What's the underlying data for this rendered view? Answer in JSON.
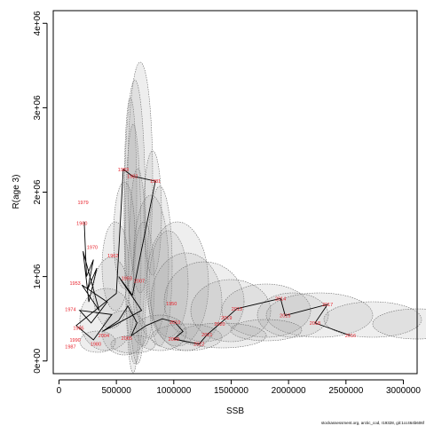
{
  "chart_data": {
    "type": "scatter",
    "title": "",
    "xlabel": "SSB",
    "ylabel": "R(age 3)",
    "xlim": [
      -50000,
      3120000
    ],
    "ylim": [
      -150000,
      4150000
    ],
    "x_ticks": [
      0,
      500000,
      1000000,
      1500000,
      2000000,
      2500000,
      3000000
    ],
    "x_tick_labels": [
      "0",
      "500000",
      "1000000",
      "1500000",
      "2000000",
      "2500000",
      "3000000"
    ],
    "y_ticks": [
      0,
      1000000,
      2000000,
      3000000,
      4000000
    ],
    "y_tick_labels": [
      "0e+00",
      "1e+06",
      "2e+06",
      "3e+06",
      "4e+06"
    ],
    "grid": false,
    "caption": "stockassessment.org, arctic_cod, r19328, git:1cc464b606f",
    "colors": {
      "points": "#e8202a",
      "line": "#000000",
      "ellipse_fill": "#9a9a9a",
      "ellipse_stroke": "#6a6a6a"
    },
    "labeled_points": [
      {
        "label": "1983",
        "x": 560000,
        "y": 2270000
      },
      {
        "label": "1982",
        "x": 640000,
        "y": 2190000
      },
      {
        "label": "1981",
        "x": 840000,
        "y": 2130000
      },
      {
        "label": "1950",
        "x": 980000,
        "y": 680000
      },
      {
        "label": "1979",
        "x": 210000,
        "y": 1880000
      },
      {
        "label": "1960",
        "x": 200000,
        "y": 1630000
      },
      {
        "label": "1970",
        "x": 290000,
        "y": 1350000
      },
      {
        "label": "1962",
        "x": 470000,
        "y": 1250000
      },
      {
        "label": "1993",
        "x": 590000,
        "y": 980000
      },
      {
        "label": "2007",
        "x": 700000,
        "y": 950000
      },
      {
        "label": "1953",
        "x": 140000,
        "y": 920000
      },
      {
        "label": "1974",
        "x": 100000,
        "y": 610000
      },
      {
        "label": "1985",
        "x": 170000,
        "y": 390000
      },
      {
        "label": "2004",
        "x": 390000,
        "y": 300000
      },
      {
        "label": "2005",
        "x": 590000,
        "y": 270000
      },
      {
        "label": "1990",
        "x": 140000,
        "y": 250000
      },
      {
        "label": "1980",
        "x": 320000,
        "y": 200000
      },
      {
        "label": "1987",
        "x": 100000,
        "y": 170000
      },
      {
        "label": "2010",
        "x": 1010000,
        "y": 460000
      },
      {
        "label": "2009",
        "x": 1000000,
        "y": 260000
      },
      {
        "label": "2022",
        "x": 1220000,
        "y": 200000
      },
      {
        "label": "2021",
        "x": 1290000,
        "y": 310000
      },
      {
        "label": "2020",
        "x": 1400000,
        "y": 440000
      },
      {
        "label": "2019",
        "x": 1460000,
        "y": 510000
      },
      {
        "label": "2013",
        "x": 1550000,
        "y": 620000
      },
      {
        "label": "2014",
        "x": 1930000,
        "y": 740000
      },
      {
        "label": "2015",
        "x": 1970000,
        "y": 540000
      },
      {
        "label": "2017",
        "x": 2340000,
        "y": 670000
      },
      {
        "label": "2018",
        "x": 2230000,
        "y": 450000
      },
      {
        "label": "2016",
        "x": 2540000,
        "y": 300000
      }
    ],
    "series": [
      {
        "values": [
          [
            220000,
            1650000
          ],
          [
            240000,
            1000000
          ],
          [
            300000,
            1200000
          ],
          [
            250000,
            850000
          ],
          [
            330000,
            1100000
          ],
          [
            260000,
            700000
          ],
          [
            210000,
            1300000
          ],
          [
            350000,
            600000
          ],
          [
            200000,
            900000
          ],
          [
            420000,
            700000
          ],
          [
            280000,
            450000
          ],
          [
            180000,
            600000
          ],
          [
            460000,
            550000
          ],
          [
            300000,
            250000
          ],
          [
            150000,
            420000
          ],
          [
            500000,
            800000
          ],
          [
            560000,
            2270000
          ],
          [
            640000,
            2190000
          ],
          [
            840000,
            2130000
          ],
          [
            640000,
            780000
          ],
          [
            520000,
            1000000
          ],
          [
            720000,
            600000
          ],
          [
            450000,
            400000
          ],
          [
            380000,
            350000
          ],
          [
            520000,
            480000
          ],
          [
            600000,
            650000
          ],
          [
            680000,
            450000
          ],
          [
            630000,
            300000
          ],
          [
            760000,
            420000
          ],
          [
            900000,
            500000
          ],
          [
            1010000,
            460000
          ],
          [
            1080000,
            350000
          ],
          [
            1000000,
            260000
          ],
          [
            1220000,
            200000
          ],
          [
            1290000,
            310000
          ],
          [
            1400000,
            440000
          ],
          [
            1460000,
            510000
          ],
          [
            1550000,
            620000
          ],
          [
            1930000,
            740000
          ],
          [
            1970000,
            540000
          ],
          [
            2340000,
            670000
          ],
          [
            2230000,
            450000
          ],
          [
            2540000,
            300000
          ]
        ]
      }
    ]
  }
}
